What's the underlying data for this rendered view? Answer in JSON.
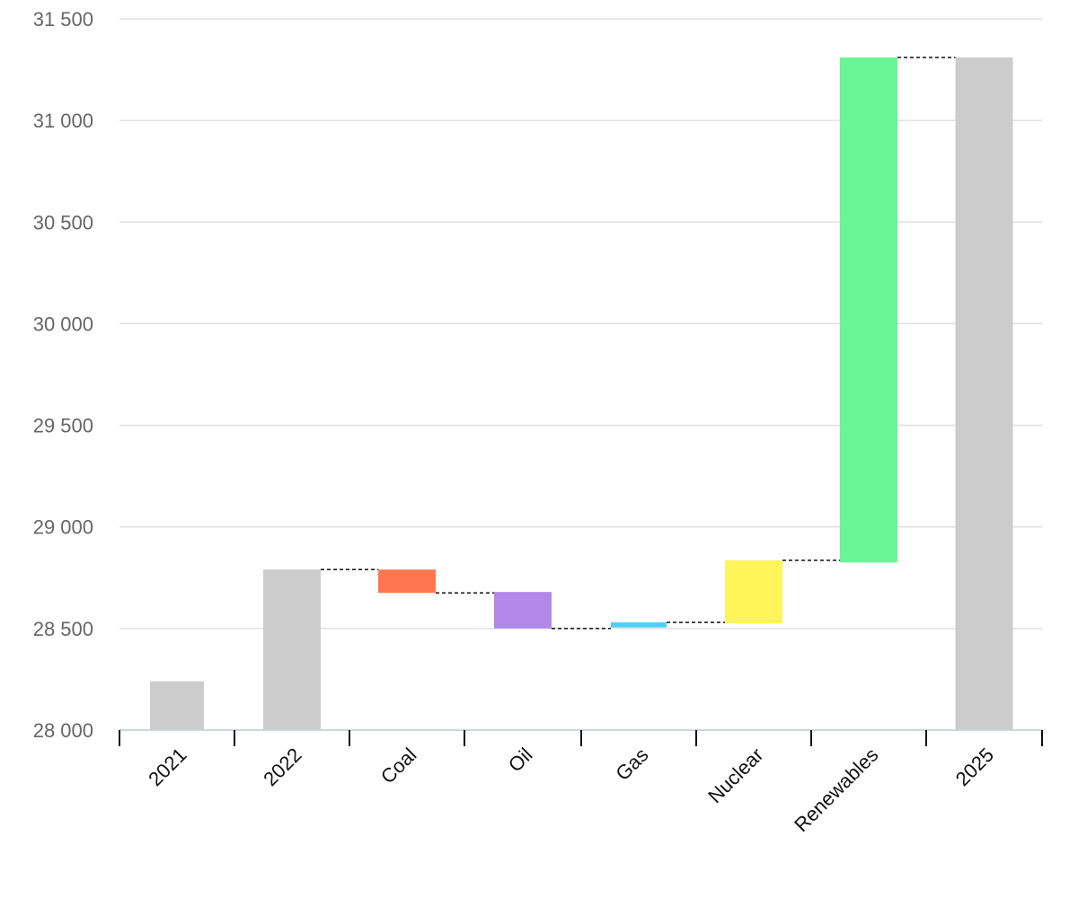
{
  "chart_data": {
    "type": "bar",
    "subtype": "waterfall",
    "title": "",
    "xlabel": "",
    "ylabel": "",
    "ylim": [
      28000,
      31500
    ],
    "yticks": [
      28000,
      28500,
      29000,
      29500,
      30000,
      30500,
      31000,
      31500
    ],
    "ytick_labels": [
      "28 000",
      "28 500",
      "29 000",
      "29 500",
      "30 000",
      "30 500",
      "31 000",
      "31 500"
    ],
    "grid": true,
    "legend": "none",
    "categories": [
      "2021",
      "2022",
      "Coal",
      "Oil",
      "Gas",
      "Nuclear",
      "Renewables",
      "2025"
    ],
    "bars": [
      {
        "label": "2021",
        "kind": "total",
        "start": 28000,
        "end": 28240,
        "color": "#cccccc"
      },
      {
        "label": "2022",
        "kind": "total",
        "start": 28000,
        "end": 28790,
        "color": "#cccccc"
      },
      {
        "label": "Coal",
        "kind": "delta",
        "start": 28790,
        "end": 28675,
        "color": "#ff7750"
      },
      {
        "label": "Oil",
        "kind": "delta",
        "start": 28680,
        "end": 28500,
        "color": "#b388eb"
      },
      {
        "label": "Gas",
        "kind": "delta",
        "start": 28505,
        "end": 28530,
        "color": "#4dd0f5"
      },
      {
        "label": "Nuclear",
        "kind": "delta",
        "start": 28525,
        "end": 28835,
        "color": "#fff45a"
      },
      {
        "label": "Renewables",
        "kind": "delta",
        "start": 28825,
        "end": 31310,
        "color": "#69f593"
      },
      {
        "label": "2025",
        "kind": "total",
        "start": 28000,
        "end": 31310,
        "color": "#cccccc"
      }
    ]
  }
}
